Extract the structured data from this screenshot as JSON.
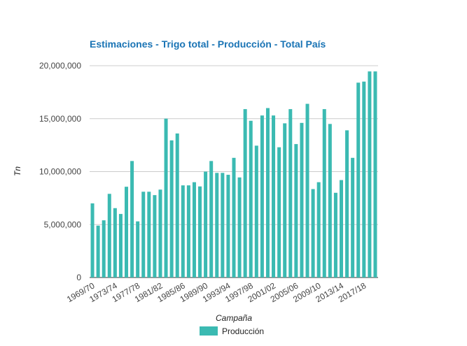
{
  "chart_data": {
    "type": "bar",
    "title": "Estimaciones - Trigo total - Producción - Total País",
    "xlabel": "Campaña",
    "ylabel": "Tn",
    "ylim": [
      0,
      20000000
    ],
    "yticks": [
      0,
      5000000,
      10000000,
      15000000,
      20000000
    ],
    "ytick_labels": [
      "0",
      "5,000,000",
      "10,000,000",
      "15,000,000",
      "20,000,000"
    ],
    "grid": true,
    "legend_position": "bottom",
    "categories": [
      "1969/70",
      "1970/71",
      "1971/72",
      "1972/73",
      "1973/74",
      "1974/75",
      "1975/76",
      "1976/77",
      "1977/78",
      "1978/79",
      "1979/80",
      "1980/81",
      "1981/82",
      "1982/83",
      "1983/84",
      "1984/85",
      "1985/86",
      "1986/87",
      "1987/88",
      "1988/89",
      "1989/90",
      "1990/91",
      "1991/92",
      "1992/93",
      "1993/94",
      "1994/95",
      "1995/96",
      "1996/97",
      "1997/98",
      "1998/99",
      "1999/00",
      "2000/01",
      "2001/02",
      "2002/03",
      "2003/04",
      "2004/05",
      "2005/06",
      "2006/07",
      "2007/08",
      "2008/09",
      "2009/10",
      "2010/11",
      "2011/12",
      "2012/13",
      "2013/14",
      "2014/15",
      "2015/16",
      "2016/17",
      "2017/18",
      "2018/19",
      "2019/20"
    ],
    "xtick_labels": [
      "1969/70",
      "1973/74",
      "1977/78",
      "1981/82",
      "1985/86",
      "1989/90",
      "1993/94",
      "1997/98",
      "2001/02",
      "2005/06",
      "2009/10",
      "2013/14",
      "2017/18"
    ],
    "series": [
      {
        "name": "Producción",
        "color": "#3bbab2",
        "values": [
          7000000,
          4900000,
          5400000,
          7900000,
          6550000,
          6000000,
          8570000,
          11000000,
          5300000,
          8100000,
          8100000,
          7780000,
          8300000,
          15000000,
          12950000,
          13600000,
          8700000,
          8700000,
          9000000,
          8600000,
          10000000,
          11000000,
          9880000,
          9880000,
          9700000,
          11300000,
          9450000,
          15900000,
          14800000,
          12450000,
          15300000,
          16000000,
          15300000,
          12300000,
          14560000,
          15900000,
          12600000,
          14600000,
          16400000,
          8350000,
          9000000,
          15900000,
          14500000,
          8000000,
          9200000,
          13900000,
          11300000,
          18400000,
          18500000,
          19460000,
          19460000
        ]
      }
    ]
  }
}
